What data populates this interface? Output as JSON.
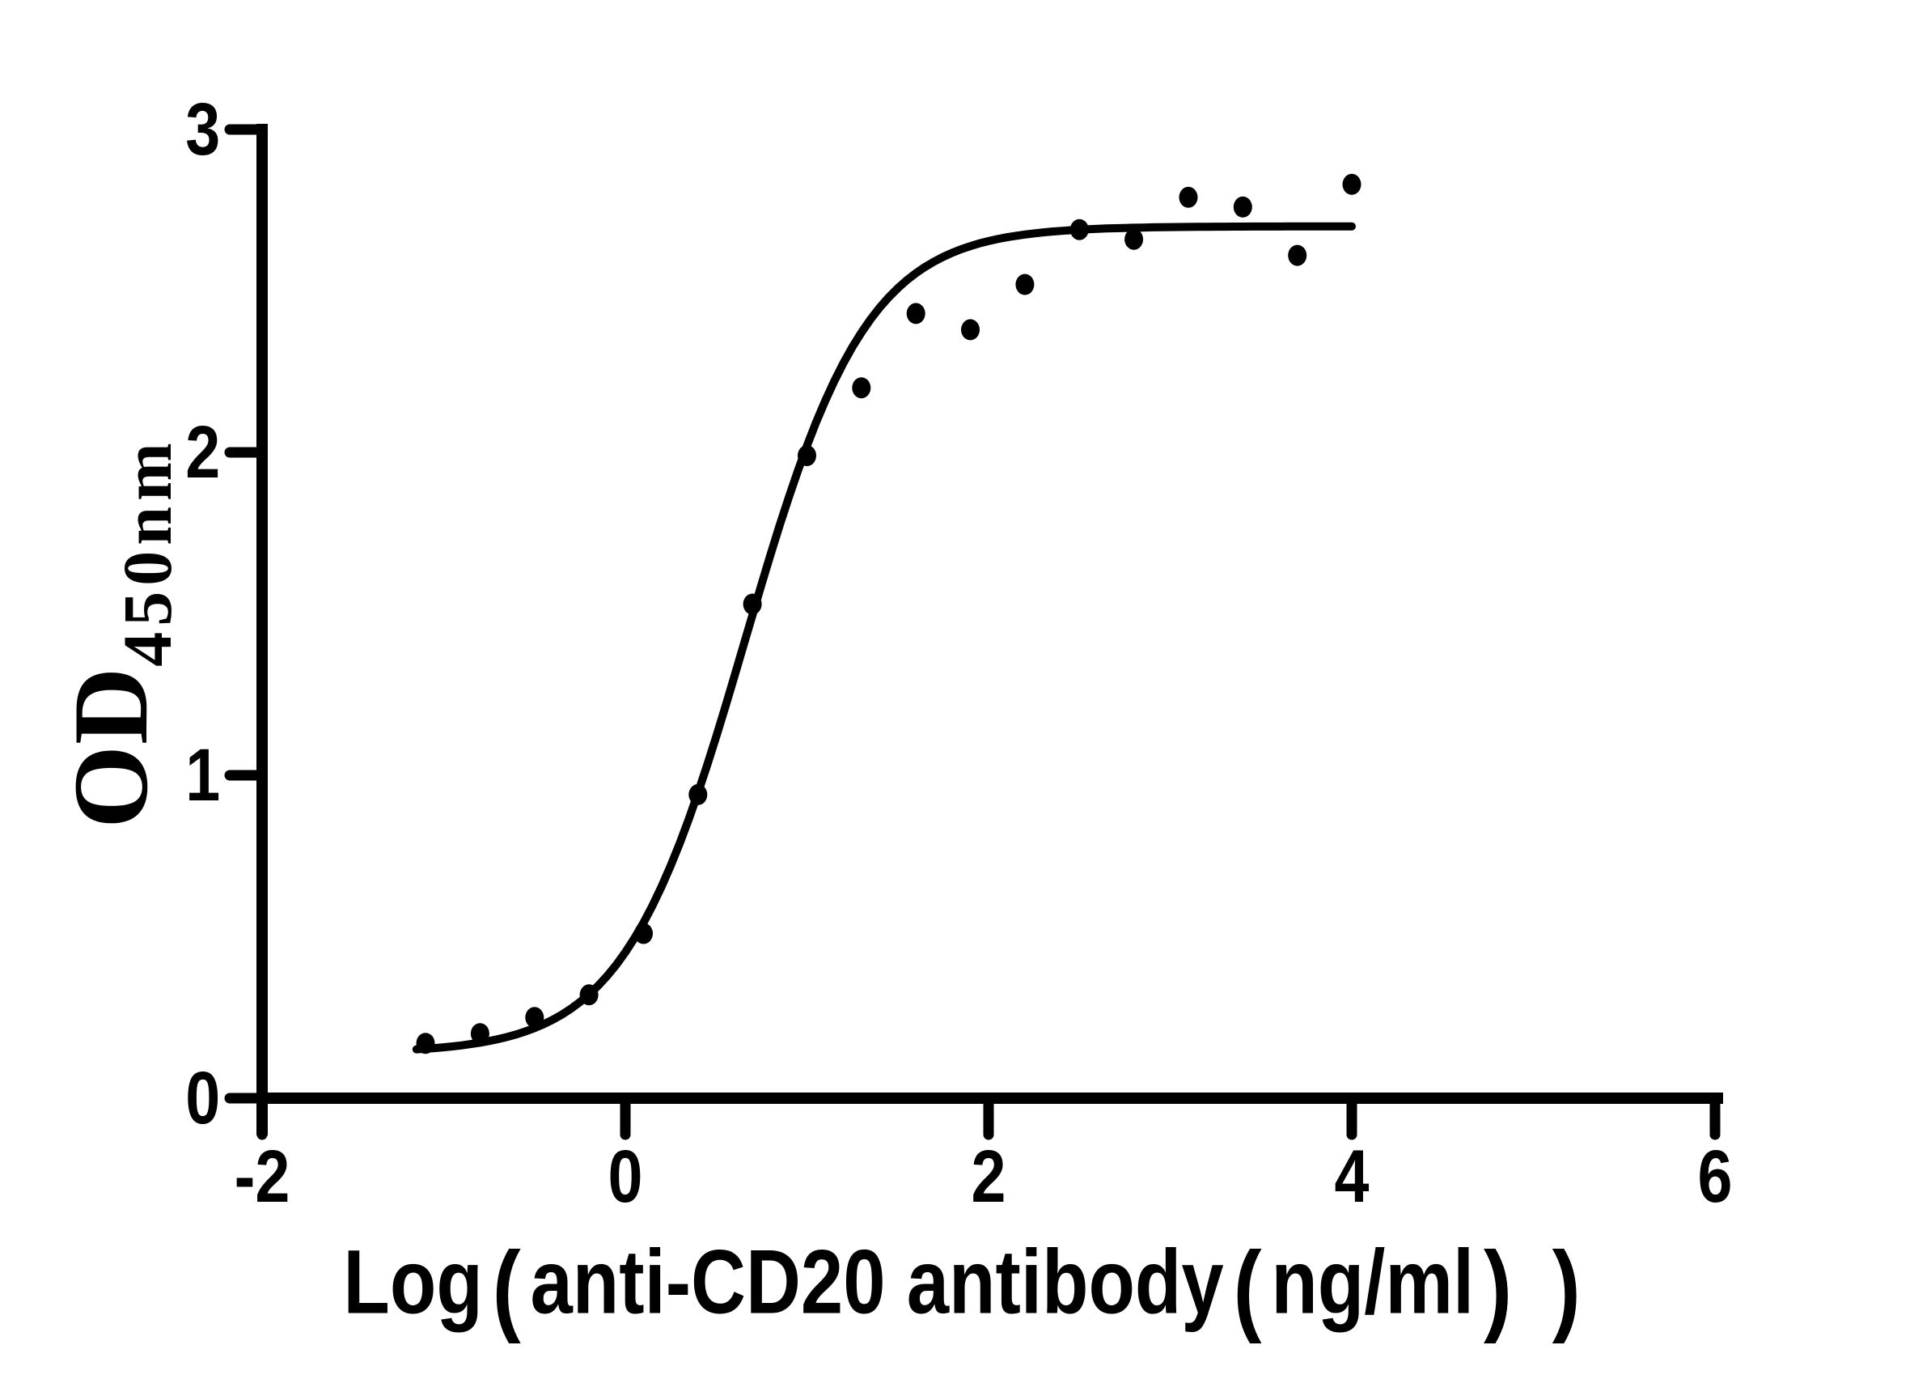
{
  "chart_data": {
    "type": "scatter",
    "title": "",
    "xlabel": "Log（anti-CD20 antibody（ng/ml） ）",
    "ylabel_main": "OD",
    "ylabel_sub": "450nm",
    "xlim": [
      -2,
      6
    ],
    "ylim": [
      0,
      3
    ],
    "x_ticks": [
      -2,
      0,
      2,
      4,
      6
    ],
    "y_ticks": [
      0,
      1,
      2,
      3
    ],
    "grid": false,
    "legend": "none",
    "points": [
      [
        -1.1,
        0.17
      ],
      [
        -0.8,
        0.2
      ],
      [
        -0.5,
        0.25
      ],
      [
        -0.2,
        0.32
      ],
      [
        0.1,
        0.51
      ],
      [
        0.4,
        0.94
      ],
      [
        0.7,
        1.53
      ],
      [
        1.0,
        1.99
      ],
      [
        1.3,
        2.2
      ],
      [
        1.6,
        2.43
      ],
      [
        1.9,
        2.38
      ],
      [
        2.2,
        2.52
      ],
      [
        2.5,
        2.69
      ],
      [
        2.8,
        2.66
      ],
      [
        3.1,
        2.79
      ],
      [
        3.4,
        2.76
      ],
      [
        3.7,
        2.61
      ],
      [
        4.0,
        2.83
      ]
    ],
    "fit_curve": {
      "model": "4PL-sigmoid",
      "bottom": 0.14,
      "top": 2.7,
      "logEC50": 0.66,
      "hill": 1.3,
      "x_start": -1.15,
      "x_end": 4.0
    },
    "colors": {
      "data": "#000000",
      "axis": "#000000",
      "background": "#ffffff"
    }
  }
}
